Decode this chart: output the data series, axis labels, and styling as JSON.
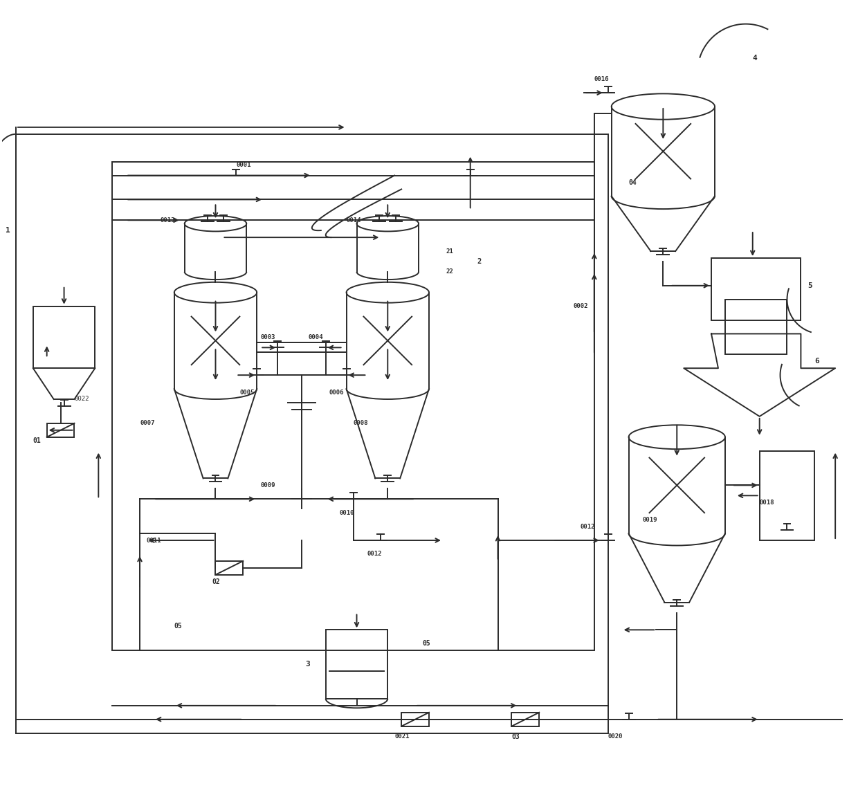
{
  "bg_color": "#ffffff",
  "line_color": "#2b2b2b",
  "lw": 1.4,
  "fig_width": 12.4,
  "fig_height": 11.52
}
